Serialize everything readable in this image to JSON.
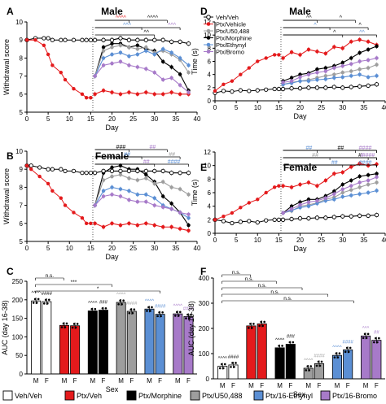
{
  "colors": {
    "vehveh": "#ffffff",
    "vehicle": "#e41a1c",
    "morphine": "#000000",
    "u50": "#9e9e9e",
    "ethynyl": "#5b8fd4",
    "bromo": "#a77ac9",
    "axis": "#000000",
    "legend_stroke": "#000000"
  },
  "chart_data": [
    {
      "panel": "A",
      "type": "line",
      "title": "Male",
      "xlabel": "Day",
      "ylabel": "Withdrawal score",
      "xlim": [
        0,
        40
      ],
      "ylim": [
        5,
        10
      ],
      "xticks": [
        0,
        5,
        10,
        15,
        20,
        25,
        30,
        35,
        40
      ],
      "yticks": [
        5,
        6,
        7,
        8,
        9,
        10
      ],
      "pre": {
        "x": [
          0,
          2,
          4,
          5,
          6,
          8,
          9,
          11,
          13,
          14,
          15
        ],
        "vehveh": [
          9.0,
          9.1,
          9.1,
          9.1,
          9.0,
          9.0,
          9.0,
          9.0,
          9.0,
          9.0,
          9.0
        ],
        "treated": [
          9.0,
          9.0,
          8.7,
          8.2,
          7.6,
          7.2,
          6.8,
          6.3,
          6.0,
          5.8,
          5.8
        ]
      },
      "post": {
        "x": [
          16,
          18,
          20,
          22,
          24,
          26,
          28,
          30,
          32,
          34,
          36,
          38
        ],
        "series": [
          {
            "key": "vehveh",
            "values": [
              9.0,
              9.0,
              9.0,
              9.1,
              9.0,
              9.0,
              9.0,
              9.0,
              9.0,
              8.9,
              8.9,
              8.8
            ]
          },
          {
            "key": "vehicle",
            "values": [
              6.0,
              6.2,
              6.1,
              6.0,
              6.1,
              6.0,
              6.1,
              6.0,
              6.0,
              6.1,
              6.0,
              6.0
            ]
          },
          {
            "key": "morphine",
            "values": [
              7.0,
              8.6,
              8.8,
              8.8,
              8.6,
              8.7,
              8.5,
              8.4,
              7.8,
              7.5,
              7.1,
              6.2
            ]
          },
          {
            "key": "u50",
            "values": [
              7.0,
              8.4,
              8.6,
              8.7,
              8.6,
              8.5,
              8.6,
              8.3,
              8.4,
              8.2,
              7.9,
              7.2
            ]
          },
          {
            "key": "ethynyl",
            "values": [
              7.0,
              8.0,
              8.2,
              8.3,
              8.1,
              8.2,
              8.4,
              8.2,
              8.5,
              8.3,
              8.0,
              7.6
            ]
          },
          {
            "key": "bromo",
            "values": [
              7.0,
              7.6,
              7.7,
              7.8,
              7.6,
              7.5,
              7.4,
              7.2,
              6.8,
              6.9,
              6.5,
              6.1
            ]
          }
        ]
      },
      "annotations": [
        {
          "text": "^^^^",
          "color": "vehicle"
        },
        {
          "text": "^^^",
          "color": "ethynyl"
        },
        {
          "text": "^^",
          "color": "morphine"
        },
        {
          "text": "^^^^",
          "color": "morphine"
        },
        {
          "text": "^^^",
          "color": "bromo"
        }
      ]
    },
    {
      "panel": "D",
      "type": "line",
      "title": "Male",
      "xlabel": "Day",
      "ylabel": "Time (s)",
      "xlim": [
        0,
        40
      ],
      "ylim": [
        0,
        12
      ],
      "xticks": [
        0,
        5,
        10,
        15,
        20,
        25,
        30,
        35,
        40
      ],
      "yticks": [
        0,
        2,
        4,
        6,
        8,
        10,
        12
      ],
      "legend": [
        "Veh/Veh",
        "Ptx/Vehicle",
        "Ptx/U50,488",
        "Ptx/Morphine",
        "Ptx/Ethynyl",
        "Ptx/Bromo"
      ],
      "legend_keys": [
        "vehveh",
        "vehicle",
        "u50",
        "morphine",
        "ethynyl",
        "bromo"
      ],
      "pre": {
        "x": [
          0,
          2,
          4,
          6,
          8,
          10,
          12,
          14,
          15
        ],
        "vehveh": [
          1.2,
          1.5,
          1.4,
          1.6,
          1.5,
          1.6,
          1.7,
          1.8,
          1.8
        ],
        "treated": [
          1.5,
          2.5,
          3.0,
          4.0,
          5.0,
          6.0,
          6.5,
          7.0,
          7.0
        ]
      },
      "post": {
        "x": [
          16,
          18,
          20,
          22,
          24,
          26,
          28,
          30,
          32,
          34,
          36,
          38
        ],
        "series": [
          {
            "key": "vehveh",
            "values": [
              1.8,
              1.9,
              1.9,
              2.0,
              2.0,
              2.0,
              2.1,
              2.0,
              2.1,
              2.2,
              2.3,
              2.5
            ]
          },
          {
            "key": "vehicle",
            "values": [
              6.5,
              7.4,
              7.0,
              7.8,
              7.5,
              7.2,
              8.2,
              8.0,
              9.0,
              9.3,
              9.0,
              8.5
            ]
          },
          {
            "key": "morphine",
            "values": [
              3.0,
              3.5,
              4.0,
              4.2,
              4.8,
              5.0,
              5.3,
              5.8,
              6.5,
              7.3,
              7.8,
              8.3
            ]
          },
          {
            "key": "u50",
            "values": [
              2.5,
              2.8,
              3.0,
              3.2,
              3.5,
              3.8,
              4.0,
              4.3,
              4.5,
              4.8,
              5.0,
              5.5
            ]
          },
          {
            "key": "ethynyl",
            "values": [
              2.5,
              2.7,
              3.0,
              3.0,
              3.2,
              3.3,
              3.5,
              3.6,
              3.8,
              4.0,
              3.6,
              3.8
            ]
          },
          {
            "key": "bromo",
            "values": [
              2.8,
              3.0,
              3.6,
              4.0,
              4.3,
              4.5,
              5.0,
              5.3,
              5.6,
              6.0,
              6.2,
              6.5
            ]
          }
        ]
      },
      "annotations": [
        {
          "text": "^^",
          "color": "morphine"
        },
        {
          "text": "^",
          "color": "ethynyl"
        },
        {
          "text": "^",
          "color": "morphine"
        },
        {
          "text": "^",
          "color": "morphine"
        },
        {
          "text": "^",
          "color": "morphine"
        },
        {
          "text": "^^",
          "color": "ethynyl"
        }
      ]
    },
    {
      "panel": "B",
      "type": "line",
      "title": "Female",
      "xlabel": "Day",
      "ylabel": "Withdrawal score",
      "xlim": [
        0,
        40
      ],
      "ylim": [
        5,
        10
      ],
      "xticks": [
        0,
        5,
        10,
        15,
        20,
        25,
        30,
        35,
        40
      ],
      "yticks": [
        5,
        6,
        7,
        8,
        9,
        10
      ],
      "pre": {
        "x": [
          0,
          1,
          3,
          5,
          6,
          8,
          9,
          11,
          13,
          14,
          15
        ],
        "vehveh": [
          9.2,
          9.2,
          9.1,
          9.0,
          9.0,
          9.0,
          8.9,
          8.9,
          8.8,
          8.8,
          8.8
        ],
        "treated": [
          9.2,
          9.0,
          8.6,
          8.2,
          7.8,
          7.4,
          7.0,
          6.6,
          6.3,
          6.0,
          6.0
        ]
      },
      "post": {
        "x": [
          16,
          18,
          20,
          22,
          24,
          26,
          28,
          30,
          32,
          34,
          36,
          38
        ],
        "series": [
          {
            "key": "vehveh",
            "values": [
              8.8,
              8.9,
              8.9,
              8.9,
              8.9,
              8.9,
              8.9,
              8.9,
              8.9,
              8.8,
              8.8,
              8.8
            ]
          },
          {
            "key": "vehicle",
            "values": [
              6.0,
              5.8,
              6.0,
              5.9,
              6.0,
              5.9,
              6.0,
              5.9,
              5.8,
              5.8,
              5.7,
              5.6
            ]
          },
          {
            "key": "morphine",
            "values": [
              7.0,
              8.8,
              9.1,
              9.2,
              9.0,
              9.0,
              8.7,
              8.3,
              7.5,
              7.1,
              6.6,
              5.9
            ]
          },
          {
            "key": "u50",
            "values": [
              7.0,
              8.4,
              8.6,
              8.7,
              8.5,
              8.4,
              8.5,
              8.2,
              8.3,
              8.0,
              7.9,
              7.6
            ]
          },
          {
            "key": "ethynyl",
            "values": [
              7.0,
              7.8,
              8.0,
              7.9,
              7.8,
              7.6,
              7.6,
              7.4,
              7.0,
              6.8,
              6.6,
              6.3
            ]
          },
          {
            "key": "bromo",
            "values": [
              7.0,
              7.5,
              7.6,
              7.5,
              7.3,
              7.2,
              7.2,
              7.0,
              6.9,
              6.8,
              6.6,
              6.5
            ]
          }
        ]
      },
      "annotations": [
        {
          "text": "###",
          "color": "morphine"
        },
        {
          "text": "##",
          "color": "ethynyl"
        },
        {
          "text": "##",
          "color": "bromo"
        },
        {
          "text": "##",
          "color": "bromo"
        },
        {
          "text": "##",
          "color": "u50"
        },
        {
          "text": "####",
          "color": "ethynyl"
        }
      ]
    },
    {
      "panel": "E",
      "type": "line",
      "title": "Female",
      "xlabel": "Day",
      "ylabel": "Time (s)",
      "xlim": [
        0,
        40
      ],
      "ylim": [
        0,
        12
      ],
      "xticks": [
        0,
        5,
        10,
        15,
        20,
        25,
        30,
        35,
        40
      ],
      "yticks": [
        0,
        2,
        4,
        6,
        8,
        10,
        12
      ],
      "pre": {
        "x": [
          0,
          2,
          4,
          6,
          8,
          10,
          12,
          14,
          15
        ],
        "vehveh": [
          2.0,
          1.8,
          1.5,
          1.7,
          1.8,
          1.6,
          1.9,
          2.0,
          2.0
        ],
        "treated": [
          2.0,
          2.5,
          3.0,
          3.8,
          4.5,
          5.0,
          6.0,
          6.8,
          7.0
        ]
      },
      "post": {
        "x": [
          16,
          18,
          20,
          22,
          24,
          26,
          28,
          30,
          32,
          34,
          36,
          38
        ],
        "series": [
          {
            "key": "vehveh",
            "values": [
              2.0,
              2.1,
              2.2,
              2.2,
              2.3,
              2.3,
              2.4,
              2.5,
              2.5,
              2.6,
              2.6,
              2.7
            ]
          },
          {
            "key": "vehicle",
            "values": [
              7.0,
              6.8,
              7.2,
              7.5,
              7.0,
              7.8,
              8.8,
              9.0,
              9.8,
              10.3,
              10.0,
              10.2
            ]
          },
          {
            "key": "morphine",
            "values": [
              3.0,
              4.0,
              4.6,
              5.0,
              5.0,
              5.5,
              6.2,
              7.2,
              7.8,
              8.4,
              8.6,
              8.8
            ]
          },
          {
            "key": "u50",
            "values": [
              3.0,
              3.3,
              4.0,
              4.2,
              4.5,
              5.0,
              5.3,
              6.0,
              6.4,
              6.8,
              7.2,
              7.5
            ]
          },
          {
            "key": "ethynyl",
            "values": [
              3.0,
              3.4,
              3.8,
              4.0,
              4.4,
              4.8,
              5.0,
              5.4,
              5.6,
              5.8,
              6.0,
              6.3
            ]
          },
          {
            "key": "bromo",
            "values": [
              3.0,
              3.6,
              4.2,
              4.6,
              4.8,
              5.2,
              5.8,
              6.5,
              7.0,
              7.5,
              7.8,
              8.3
            ]
          }
        ]
      },
      "annotations": [
        {
          "text": "##",
          "color": "ethynyl"
        },
        {
          "text": "##",
          "color": "u50"
        },
        {
          "text": "##",
          "color": "ethynyl"
        },
        {
          "text": "##",
          "color": "morphine"
        },
        {
          "text": "#",
          "color": "morphine"
        },
        {
          "text": "##",
          "color": "ethynyl"
        },
        {
          "text": "##",
          "color": "bromo"
        },
        {
          "text": "#",
          "color": "bromo"
        },
        {
          "text": "##",
          "color": "ethynyl"
        },
        {
          "text": "##",
          "color": "bromo"
        },
        {
          "text": "####",
          "color": "bromo"
        }
      ]
    },
    {
      "panel": "C",
      "type": "bar",
      "xlabel": "Sex",
      "ylabel": "AUC (day 16-38)",
      "ylim": [
        0,
        250
      ],
      "yticks": [
        0,
        50,
        100,
        150,
        200,
        250
      ],
      "categories": [
        "M",
        "F"
      ],
      "series": [
        {
          "key": "vehveh",
          "values": [
            197,
            195
          ]
        },
        {
          "key": "vehicle",
          "values": [
            131,
            130
          ]
        },
        {
          "key": "morphine",
          "values": [
            170,
            172
          ]
        },
        {
          "key": "u50",
          "values": [
            193,
            169
          ]
        },
        {
          "key": "ethynyl",
          "values": [
            175,
            161
          ]
        },
        {
          "key": "bromo",
          "values": [
            162,
            155
          ]
        }
      ],
      "bar_labels": [
        [
          "^^^^",
          "####"
        ],
        [
          "",
          ""
        ],
        [
          "^^^^",
          "###"
        ],
        [
          "^^^^",
          "####"
        ],
        [
          "^^^^",
          "####"
        ],
        [
          "^^^^",
          "####"
        ]
      ],
      "comparisons": [
        {
          "text": "n.s."
        },
        {
          "text": "***"
        },
        {
          "text": "*"
        }
      ]
    },
    {
      "panel": "F",
      "type": "bar",
      "xlabel": "Sex",
      "ylabel": "AUC (day 16-38)",
      "ylim": [
        0,
        400
      ],
      "yticks": [
        0,
        100,
        200,
        300,
        400
      ],
      "categories": [
        "M",
        "F"
      ],
      "series": [
        {
          "key": "vehveh",
          "values": [
            50,
            55
          ]
        },
        {
          "key": "vehicle",
          "values": [
            210,
            218
          ]
        },
        {
          "key": "morphine",
          "values": [
            123,
            137
          ]
        },
        {
          "key": "u50",
          "values": [
            42,
            60
          ]
        },
        {
          "key": "ethynyl",
          "values": [
            93,
            115
          ]
        },
        {
          "key": "bromo",
          "values": [
            170,
            153
          ]
        }
      ],
      "bar_labels": [
        [
          "^^^^",
          "####"
        ],
        [
          "",
          ""
        ],
        [
          "^^^^",
          "###"
        ],
        [
          "^^^^",
          "####"
        ],
        [
          "^^^^",
          "####"
        ],
        [
          "^^^",
          "##"
        ]
      ],
      "comparisons": [
        {
          "text": "n.s."
        },
        {
          "text": "n.s."
        },
        {
          "text": "n.s."
        },
        {
          "text": "n.s."
        },
        {
          "text": "n.s."
        }
      ]
    }
  ],
  "bottom_legend": [
    {
      "key": "vehveh",
      "label": "Veh/Veh"
    },
    {
      "key": "vehicle",
      "label": "Ptx/Veh"
    },
    {
      "key": "morphine",
      "label": "Ptx/Morphine"
    },
    {
      "key": "u50",
      "label": "Ptx/U50,488"
    },
    {
      "key": "ethynyl",
      "label": "Ptx/16-Ethynyl"
    },
    {
      "key": "bromo",
      "label": "Ptx/16-Bromo"
    }
  ]
}
